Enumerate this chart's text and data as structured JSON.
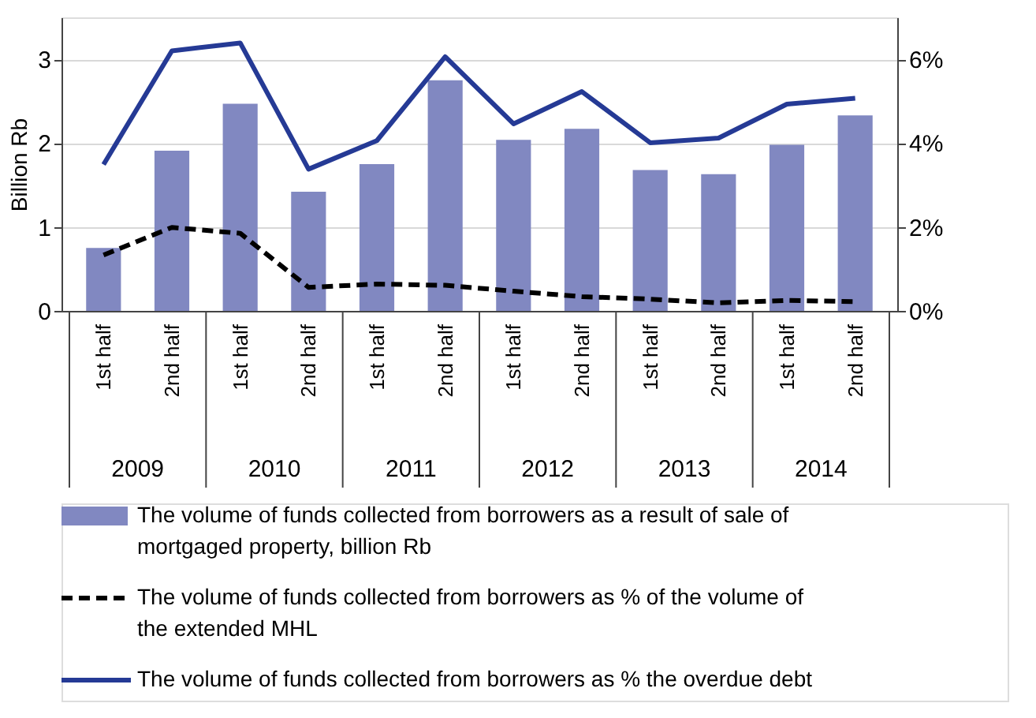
{
  "chart_data": {
    "type": "bar",
    "categories": [
      "1st half",
      "2nd half",
      "1st half",
      "2nd half",
      "1st half",
      "2nd half",
      "1st half",
      "2nd half",
      "1st half",
      "2nd half",
      "1st half",
      "2nd half"
    ],
    "annotations": [
      "2009",
      "2010",
      "2011",
      "2012",
      "2013",
      "2014"
    ],
    "ylabel": "Billion Rb",
    "ylim": [
      0,
      3.5
    ],
    "yticks": [
      0,
      1,
      2,
      3
    ],
    "y2lim": [
      0,
      7
    ],
    "y2ticks": [
      {
        "value": 0,
        "label": "0%"
      },
      {
        "value": 2,
        "label": "2%"
      },
      {
        "value": 4,
        "label": "4%"
      },
      {
        "value": 6,
        "label": "6%"
      }
    ],
    "grid": "y",
    "legend": "bottom",
    "series": [
      {
        "name": "The volume of funds collected from borrowers as a result of sale of mortgaged property, billion Rb",
        "color": "#8188c1",
        "values": [
          0.75,
          1.91,
          2.47,
          1.42,
          1.75,
          2.75,
          2.04,
          2.17,
          1.68,
          1.63,
          1.98,
          2.33
        ]
      },
      {
        "type": "line",
        "axis": "y2",
        "line_style": "dashed",
        "name": "The volume of funds collected from borrowers as % of the volume of the extended MHL",
        "color": "#000000",
        "values": [
          1.33,
          1.99,
          1.85,
          0.56,
          0.64,
          0.61,
          0.47,
          0.34,
          0.28,
          0.19,
          0.25,
          0.22
        ]
      },
      {
        "type": "line",
        "axis": "y2",
        "line_style": "solid",
        "name": "The volume of funds collected from borrowers as % the overdue debt",
        "color": "#253a95",
        "values": [
          3.49,
          6.2,
          6.39,
          3.38,
          4.06,
          6.06,
          4.46,
          5.23,
          4.01,
          4.12,
          4.93,
          5.07
        ]
      }
    ]
  }
}
